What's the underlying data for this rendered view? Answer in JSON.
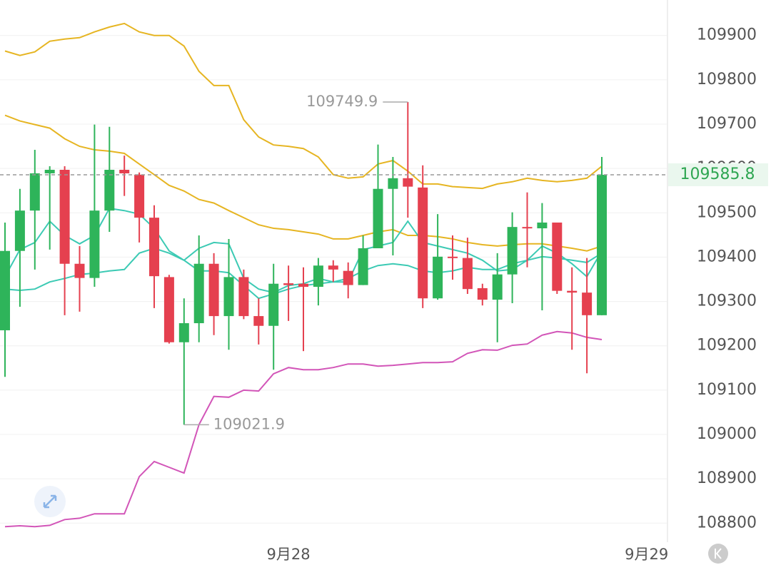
{
  "chart_data": {
    "type": "candlestick",
    "categories": [
      null,
      null,
      null,
      null,
      null,
      null,
      null,
      null,
      null,
      null,
      null,
      null,
      null,
      null,
      null,
      null,
      null,
      null,
      null,
      "9月28",
      null,
      null,
      null,
      null,
      null,
      null,
      null,
      null,
      null,
      null,
      null,
      null,
      null,
      null,
      null,
      null,
      null,
      null,
      null,
      null,
      null,
      null,
      null,
      "9月29"
    ],
    "open": [
      109235,
      109414,
      109505,
      109589,
      109597,
      109385,
      109353,
      109505,
      109597,
      109586,
      109489,
      109355,
      109208,
      109251,
      109385,
      109267,
      109355,
      109267,
      109245,
      109341,
      109340,
      109333,
      109381,
      109369,
      109337,
      109420,
      109554,
      109578,
      109557,
      109307,
      109401,
      109398,
      109330,
      109304,
      109361,
      109468,
      109465,
      109478,
      109324,
      109320,
      109269,
      null,
      null,
      null
    ],
    "high": [
      109478,
      109554,
      109642,
      109605,
      109605,
      109425,
      109699,
      109694,
      109629,
      109591,
      109517,
      109360,
      109307,
      109449,
      109409,
      109441,
      109372,
      109307,
      109385,
      109381,
      109377,
      109398,
      109393,
      109388,
      109449,
      109654,
      109626,
      109749.9,
      109607,
      109497,
      109449,
      109444,
      109340,
      109409,
      109501,
      109546,
      109522,
      109478,
      109377,
      109398,
      109626,
      null,
      null,
      null
    ],
    "low": [
      109130,
      109288,
      109372,
      109417,
      109269,
      109277,
      109333,
      109457,
      109538,
      109433,
      109285,
      109205,
      109021.9,
      109208,
      109224,
      109191,
      109260,
      109203,
      109146,
      109256,
      109188,
      109291,
      109344,
      109307,
      109337,
      109420,
      109404,
      109489,
      109285,
      109304,
      109349,
      109317,
      109291,
      109208,
      109296,
      109377,
      109280,
      109317,
      109191,
      109138,
      109269,
      null,
      null,
      null
    ],
    "close": [
      109414,
      109505,
      109589,
      109597,
      109385,
      109353,
      109505,
      109597,
      109589,
      109489,
      109357,
      109208,
      109251,
      109385,
      109267,
      109355,
      109267,
      109245,
      109340,
      109337,
      109333,
      109381,
      109372,
      109337,
      109420,
      109554,
      109578,
      109559,
      109307,
      109401,
      109398,
      109328,
      109304,
      109361,
      109468,
      109465,
      109478,
      109324,
      109320,
      109269,
      109585.8,
      null,
      null,
      null
    ],
    "up_color": "#2eb45a",
    "down_color": "#e5404f",
    "lines": [
      {
        "color": "#e6b522",
        "values": [
          109865,
          109855,
          109863,
          109887,
          109892,
          109895,
          109908,
          109919,
          109927,
          109908,
          109900,
          109900,
          109876,
          109819,
          109787,
          109787,
          109710,
          109671,
          109653,
          109650,
          109645,
          109626,
          109586,
          109578,
          109581,
          109610,
          109618,
          109594,
          109565,
          109565,
          109559,
          109557,
          109555,
          109565,
          109570,
          109578,
          109573,
          109570,
          109573,
          109578,
          109605,
          null,
          null,
          null
        ]
      },
      {
        "color": "#e6b522",
        "values": [
          109720,
          109707,
          109699,
          109691,
          109667,
          109650,
          109642,
          109639,
          109634,
          109610,
          109586,
          109562,
          109549,
          109530,
          109522,
          109505,
          109489,
          109473,
          109465,
          109462,
          109457,
          109452,
          109441,
          109441,
          109449,
          109457,
          109462,
          109449,
          109449,
          109446,
          109441,
          109433,
          109428,
          109425,
          109428,
          109430,
          109430,
          109425,
          109420,
          109414,
          109425,
          null,
          null,
          null
        ]
      },
      {
        "color": "#d255b8",
        "values": [
          108792,
          108794,
          108792,
          108795,
          108808,
          108811,
          108821,
          108821,
          108821,
          108905,
          108939,
          108926,
          108913,
          109022,
          109086,
          109084,
          109100,
          109098,
          109137,
          109151,
          109146,
          109146,
          109151,
          109159,
          109159,
          109154,
          109156,
          109159,
          109162,
          109162,
          109164,
          109183,
          109191,
          109190,
          109201,
          109204,
          109224,
          109232,
          109229,
          109219,
          109214,
          null,
          null,
          null
        ]
      },
      {
        "color": "#3ccab4",
        "values": [
          109356,
          109417,
          109433,
          109481,
          109449,
          109430,
          109449,
          109510,
          109505,
          109497,
          109465,
          109414,
          109393,
          109420,
          109433,
          109430,
          109352,
          109328,
          109320,
          109336,
          109340,
          109352,
          109344,
          109344,
          109417,
          109425,
          109433,
          109481,
          109433,
          109425,
          109417,
          109409,
          109393,
          109369,
          109372,
          109393,
          109425,
          109409,
          109385,
          109356,
          109414,
          null,
          null,
          null
        ]
      },
      {
        "color": "#3ccab4",
        "values": [
          109328,
          109325,
          109328,
          109344,
          109352,
          109361,
          109364,
          109369,
          109372,
          109409,
          109420,
          109409,
          109393,
          109369,
          109369,
          109365,
          109336,
          109307,
          109317,
          109328,
          109336,
          109340,
          109344,
          109352,
          109369,
          109381,
          109385,
          109381,
          109369,
          109365,
          109369,
          109377,
          109372,
          109372,
          109385,
          109393,
          109401,
          109398,
          109393,
          109388,
          109409,
          null,
          null,
          null
        ]
      }
    ],
    "ylim": [
      108757,
      109980
    ],
    "yticks": [
      108800,
      108900,
      109000,
      109100,
      109200,
      109300,
      109400,
      109500,
      109600,
      109700,
      109800,
      109900
    ],
    "grid": true,
    "last_color": "#2fa652"
  }
}
